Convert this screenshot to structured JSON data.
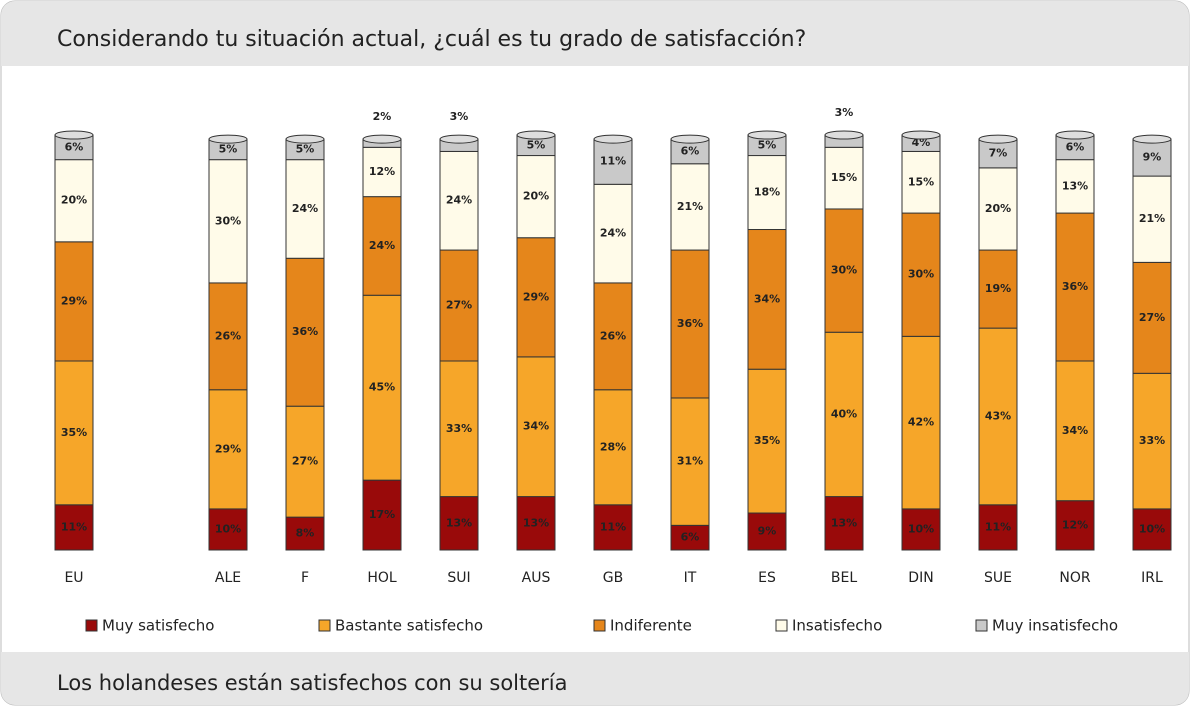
{
  "chart_data": {
    "type": "stacked-bar",
    "title": "Considerando tu situación actual, ¿cuál es tu grado de satisfacción?",
    "annotation": "Los holandeses están satisfechos con su soltería",
    "categories": [
      "EU",
      "ALE",
      "F",
      "HOL",
      "SUI",
      "AUS",
      "GB",
      "IT",
      "ES",
      "BEL",
      "DIN",
      "SUE",
      "NOR",
      "IRL"
    ],
    "series": [
      {
        "name": "Muy satisfecho",
        "color": "#990a0a",
        "values": [
          11,
          10,
          8,
          17,
          13,
          13,
          11,
          6,
          9,
          13,
          10,
          11,
          12,
          10
        ],
        "value_labels": [
          "11%",
          "10%",
          "8%",
          "17%",
          "13%",
          "13%",
          "11%",
          "6%",
          "9%",
          "13%",
          "10%",
          "11%",
          "12%",
          "10%"
        ]
      },
      {
        "name": "Bastante satisfecho",
        "color": "#f6a629",
        "values": [
          35,
          29,
          27,
          45,
          33,
          34,
          28,
          31,
          35,
          40,
          42,
          43,
          34,
          33
        ],
        "value_labels": [
          "35%",
          "29%",
          "27%",
          "45%",
          "33%",
          "34%",
          "28%",
          "31%",
          "35%",
          "40%",
          "42%",
          "43%",
          "34%",
          "33%"
        ]
      },
      {
        "name": "Indiferente",
        "color": "#e5861b",
        "values": [
          29,
          26,
          36,
          24,
          27,
          29,
          26,
          36,
          34,
          30,
          30,
          19,
          36,
          27
        ],
        "value_labels": [
          "29%",
          "26%",
          "36%",
          "24%",
          "27%",
          "29%",
          "26%",
          "36%",
          "34%",
          "30%",
          "30%",
          "19%",
          "36%",
          "27%"
        ]
      },
      {
        "name": "Insatisfecho",
        "color": "#fffbe9",
        "values": [
          20,
          30,
          24,
          12,
          24,
          20,
          24,
          21,
          18,
          15,
          15,
          20,
          13,
          21
        ],
        "value_labels": [
          "20%",
          "30%",
          "24%",
          "12%",
          "24%",
          "20%",
          "24%",
          "21%",
          "18%",
          "15%",
          "15%",
          "20%",
          "13%",
          "21%"
        ]
      },
      {
        "name": "Muy insatisfecho",
        "color": "#c9c9c9",
        "values": [
          6,
          5,
          5,
          2,
          3,
          5,
          11,
          6,
          5,
          3,
          4,
          7,
          6,
          9
        ],
        "value_labels": [
          "6%",
          "5%",
          "5%",
          "2%",
          "3%",
          "5%",
          "11%",
          "6%",
          "5%",
          "3%",
          "4%",
          "7%",
          "6%",
          "9%"
        ]
      }
    ]
  }
}
